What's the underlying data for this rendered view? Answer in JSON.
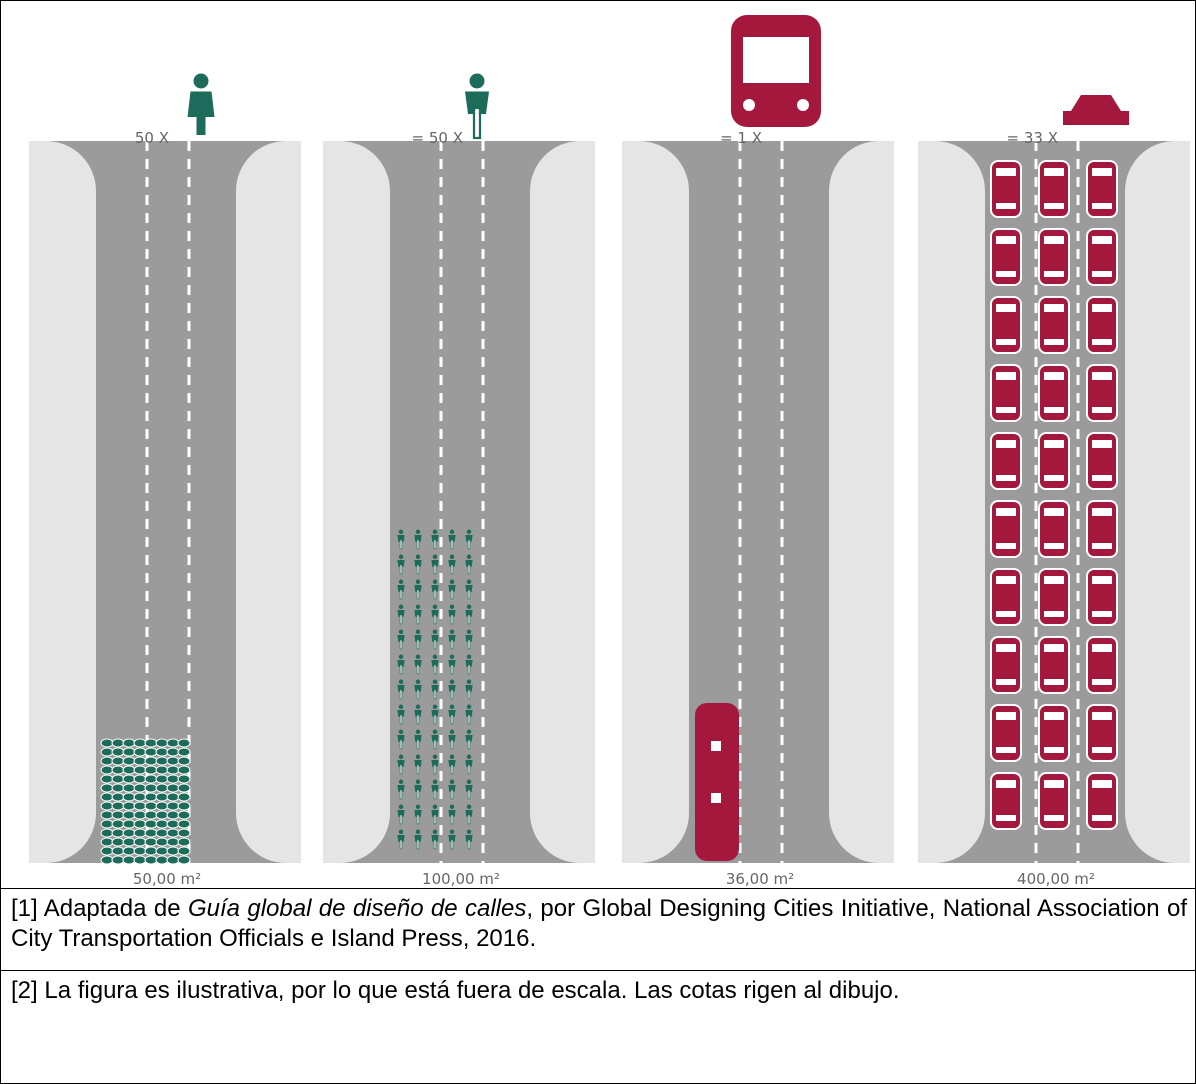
{
  "panels": [
    {
      "label": "50 X",
      "area": "50,00 m²"
    },
    {
      "label": "= 50 X",
      "area": "100,00 m²"
    },
    {
      "label": "= 1 X",
      "area": "36,00 m²"
    },
    {
      "label": "= 33 X",
      "area": "400,00 m²"
    }
  ],
  "notes": [
    {
      "before": "[1] Adaptada de ",
      "italic": "Guía global de diseño de calles",
      "after": ", por Global Designing Cities Initiative, National Association of City Transportation Officials e Island Press, 2016."
    },
    {
      "before": "[2] La figura es ilustrativa, por lo que está fuera de escala. Las cotas rigen al dibujo."
    }
  ]
}
